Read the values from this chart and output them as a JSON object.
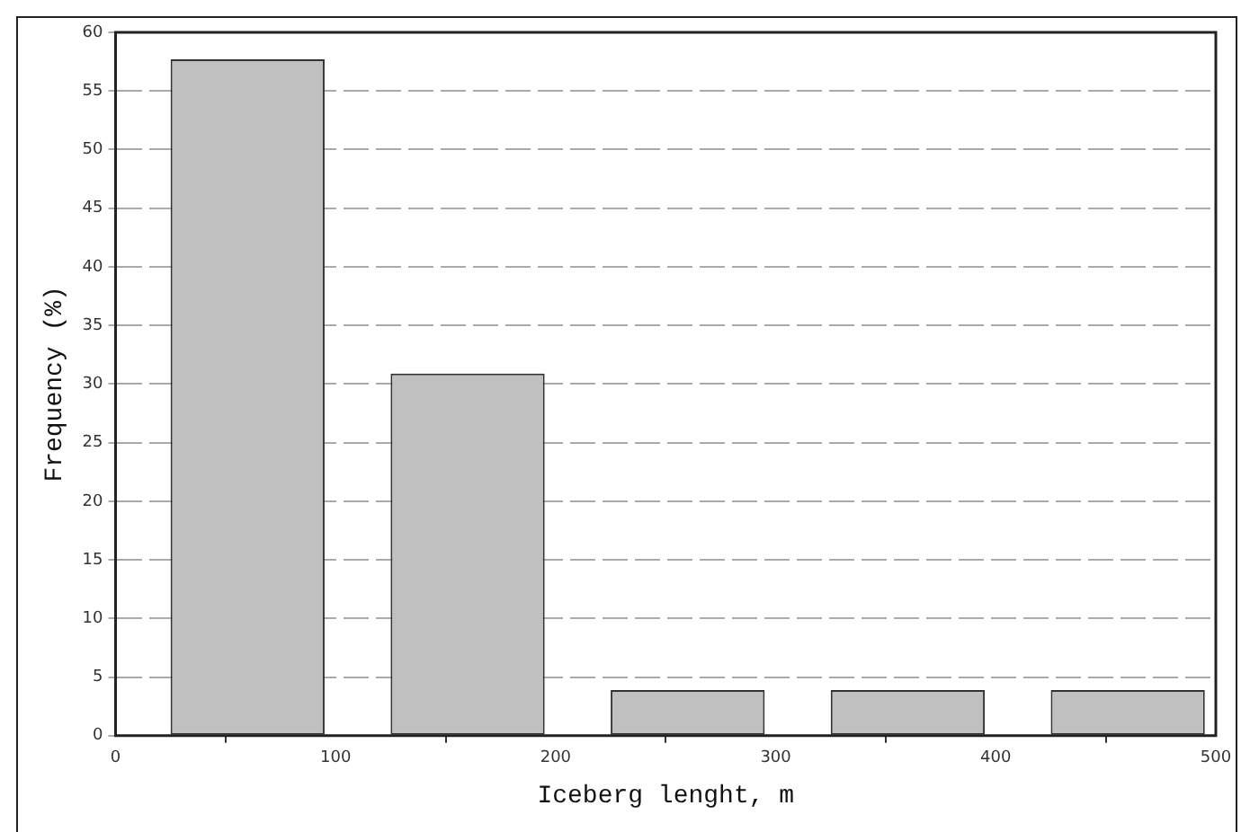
{
  "chart_data": {
    "type": "bar",
    "xlabel": "Iceberg lenght, m",
    "ylabel": "Frequency (%)",
    "x": [
      60,
      160,
      260,
      360,
      460
    ],
    "values": [
      57.7,
      30.9,
      3.9,
      3.9,
      3.9
    ],
    "color": "#c0c0c0",
    "xlim": [
      0,
      500
    ],
    "xticks": [
      0,
      100,
      200,
      300,
      400,
      500
    ],
    "ylim": [
      0,
      60
    ],
    "yticks": [
      0,
      5,
      10,
      15,
      20,
      25,
      30,
      35,
      40,
      45,
      50,
      55,
      60
    ],
    "grid": "y",
    "legend": false
  }
}
